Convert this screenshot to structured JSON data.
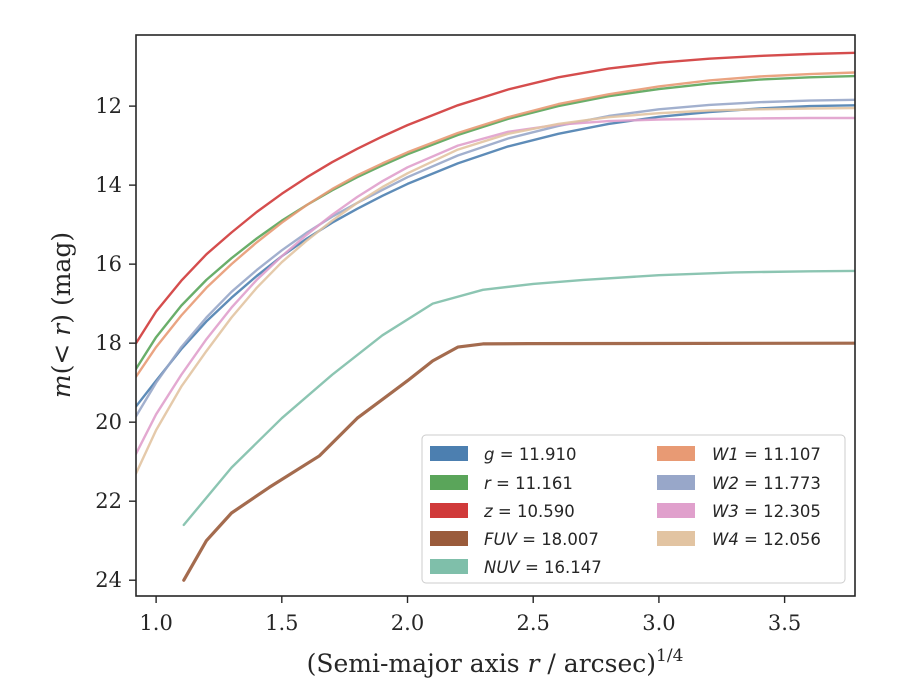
{
  "chart_data": {
    "type": "line",
    "xlabel": "(Semi-major axis r / arcsec)^{1/4}",
    "xlabel_parts": {
      "pre": "(Semi-major axis ",
      "var": "r",
      "post": " / arcsec)",
      "sup": "1/4"
    },
    "ylabel": "m(< r) (mag)",
    "ylabel_parts": {
      "m": "m",
      "open": "(",
      "lt": "<",
      "r": "r",
      "close": ")",
      "unit": " (mag)"
    },
    "xlim": [
      0.92,
      3.78
    ],
    "ylim": [
      24.4,
      10.2
    ],
    "y_inverted": true,
    "xticks": [
      1.0,
      1.5,
      2.0,
      2.5,
      3.0,
      3.5
    ],
    "xtick_labels": [
      "1.0",
      "1.5",
      "2.0",
      "2.5",
      "3.0",
      "3.5"
    ],
    "yticks": [
      12,
      14,
      16,
      18,
      20,
      22,
      24
    ],
    "ytick_labels": [
      "12",
      "14",
      "16",
      "18",
      "20",
      "22",
      "24"
    ],
    "grid": false,
    "legend_position": "lower-right",
    "legend_columns": 2,
    "series": [
      {
        "name": "g = 11.910",
        "label_var": "g",
        "label_val": "11.910",
        "color": "#4c7fb0",
        "total": 11.91,
        "points": [
          [
            0.92,
            19.6
          ],
          [
            1.0,
            18.95
          ],
          [
            1.1,
            18.15
          ],
          [
            1.2,
            17.45
          ],
          [
            1.3,
            16.85
          ],
          [
            1.4,
            16.3
          ],
          [
            1.5,
            15.8
          ],
          [
            1.6,
            15.35
          ],
          [
            1.7,
            14.95
          ],
          [
            1.8,
            14.6
          ],
          [
            1.9,
            14.27
          ],
          [
            2.0,
            13.97
          ],
          [
            2.2,
            13.45
          ],
          [
            2.4,
            13.02
          ],
          [
            2.6,
            12.7
          ],
          [
            2.8,
            12.45
          ],
          [
            3.0,
            12.27
          ],
          [
            3.2,
            12.15
          ],
          [
            3.4,
            12.06
          ],
          [
            3.6,
            12.0
          ],
          [
            3.78,
            11.98
          ]
        ]
      },
      {
        "name": "r = 11.161",
        "label_var": "r",
        "label_val": "11.161",
        "color": "#5aa55a",
        "total": 11.161,
        "points": [
          [
            0.92,
            18.65
          ],
          [
            1.0,
            17.85
          ],
          [
            1.1,
            17.05
          ],
          [
            1.2,
            16.4
          ],
          [
            1.3,
            15.85
          ],
          [
            1.4,
            15.35
          ],
          [
            1.5,
            14.9
          ],
          [
            1.6,
            14.5
          ],
          [
            1.7,
            14.13
          ],
          [
            1.8,
            13.8
          ],
          [
            1.9,
            13.5
          ],
          [
            2.0,
            13.22
          ],
          [
            2.2,
            12.73
          ],
          [
            2.4,
            12.32
          ],
          [
            2.6,
            12.0
          ],
          [
            2.8,
            11.75
          ],
          [
            3.0,
            11.57
          ],
          [
            3.2,
            11.43
          ],
          [
            3.4,
            11.33
          ],
          [
            3.6,
            11.27
          ],
          [
            3.78,
            11.24
          ]
        ]
      },
      {
        "name": "z = 10.590",
        "label_var": "z",
        "label_val": "10.590",
        "color": "#d03a3a",
        "total": 10.59,
        "points": [
          [
            0.92,
            18.0
          ],
          [
            1.0,
            17.2
          ],
          [
            1.1,
            16.42
          ],
          [
            1.2,
            15.75
          ],
          [
            1.3,
            15.2
          ],
          [
            1.4,
            14.68
          ],
          [
            1.5,
            14.22
          ],
          [
            1.6,
            13.8
          ],
          [
            1.7,
            13.42
          ],
          [
            1.8,
            13.08
          ],
          [
            1.9,
            12.77
          ],
          [
            2.0,
            12.48
          ],
          [
            2.2,
            11.98
          ],
          [
            2.4,
            11.58
          ],
          [
            2.6,
            11.27
          ],
          [
            2.8,
            11.05
          ],
          [
            3.0,
            10.9
          ],
          [
            3.2,
            10.8
          ],
          [
            3.4,
            10.73
          ],
          [
            3.6,
            10.68
          ],
          [
            3.78,
            10.65
          ]
        ]
      },
      {
        "name": "FUV = 18.007",
        "label_var": "FUV",
        "label_val": "18.007",
        "color": "#9a5b3b",
        "total": 18.007,
        "points": [
          [
            1.11,
            24.0
          ],
          [
            1.2,
            23.0
          ],
          [
            1.3,
            22.3
          ],
          [
            1.45,
            21.65
          ],
          [
            1.65,
            20.85
          ],
          [
            1.8,
            19.9
          ],
          [
            2.0,
            18.95
          ],
          [
            2.1,
            18.45
          ],
          [
            2.2,
            18.1
          ],
          [
            2.3,
            18.02
          ],
          [
            2.48,
            18.01
          ],
          [
            3.78,
            18.0
          ]
        ]
      },
      {
        "name": "NUV = 16.147",
        "label_var": "NUV",
        "label_val": "16.147",
        "color": "#7fbfaa",
        "total": 16.147,
        "points": [
          [
            1.11,
            22.6
          ],
          [
            1.3,
            21.15
          ],
          [
            1.5,
            19.9
          ],
          [
            1.7,
            18.8
          ],
          [
            1.9,
            17.8
          ],
          [
            2.1,
            17.0
          ],
          [
            2.3,
            16.65
          ],
          [
            2.5,
            16.5
          ],
          [
            2.7,
            16.4
          ],
          [
            3.0,
            16.28
          ],
          [
            3.3,
            16.21
          ],
          [
            3.6,
            16.18
          ],
          [
            3.78,
            16.17
          ]
        ]
      },
      {
        "name": "W1 = 11.107",
        "label_var": "W1",
        "label_val": "11.107",
        "color": "#e89a74",
        "total": 11.107,
        "points": [
          [
            0.92,
            18.85
          ],
          [
            1.0,
            18.1
          ],
          [
            1.1,
            17.3
          ],
          [
            1.2,
            16.6
          ],
          [
            1.3,
            16.0
          ],
          [
            1.4,
            15.45
          ],
          [
            1.5,
            14.95
          ],
          [
            1.6,
            14.5
          ],
          [
            1.7,
            14.1
          ],
          [
            1.8,
            13.75
          ],
          [
            1.9,
            13.45
          ],
          [
            2.0,
            13.17
          ],
          [
            2.2,
            12.68
          ],
          [
            2.4,
            12.28
          ],
          [
            2.6,
            11.95
          ],
          [
            2.8,
            11.7
          ],
          [
            3.0,
            11.5
          ],
          [
            3.2,
            11.35
          ],
          [
            3.4,
            11.25
          ],
          [
            3.6,
            11.19
          ],
          [
            3.78,
            11.15
          ]
        ]
      },
      {
        "name": "W2 = 11.773",
        "label_var": "W2",
        "label_val": "11.773",
        "color": "#98a7c9",
        "total": 11.773,
        "points": [
          [
            0.92,
            19.85
          ],
          [
            1.0,
            19.0
          ],
          [
            1.1,
            18.1
          ],
          [
            1.2,
            17.35
          ],
          [
            1.3,
            16.7
          ],
          [
            1.4,
            16.15
          ],
          [
            1.5,
            15.65
          ],
          [
            1.6,
            15.2
          ],
          [
            1.7,
            14.8
          ],
          [
            1.8,
            14.45
          ],
          [
            1.9,
            14.12
          ],
          [
            2.0,
            13.8
          ],
          [
            2.2,
            13.25
          ],
          [
            2.4,
            12.82
          ],
          [
            2.6,
            12.5
          ],
          [
            2.8,
            12.25
          ],
          [
            3.0,
            12.08
          ],
          [
            3.2,
            11.97
          ],
          [
            3.4,
            11.9
          ],
          [
            3.6,
            11.86
          ],
          [
            3.78,
            11.84
          ]
        ]
      },
      {
        "name": "W3 = 12.305",
        "label_var": "W3",
        "label_val": "12.305",
        "color": "#e0a0cc",
        "total": 12.305,
        "points": [
          [
            0.92,
            20.8
          ],
          [
            1.0,
            19.8
          ],
          [
            1.1,
            18.8
          ],
          [
            1.2,
            17.9
          ],
          [
            1.3,
            17.1
          ],
          [
            1.4,
            16.4
          ],
          [
            1.5,
            15.8
          ],
          [
            1.6,
            15.25
          ],
          [
            1.7,
            14.75
          ],
          [
            1.8,
            14.3
          ],
          [
            1.9,
            13.9
          ],
          [
            2.0,
            13.55
          ],
          [
            2.2,
            13.0
          ],
          [
            2.4,
            12.65
          ],
          [
            2.6,
            12.47
          ],
          [
            2.8,
            12.38
          ],
          [
            3.0,
            12.34
          ],
          [
            3.2,
            12.32
          ],
          [
            3.4,
            12.31
          ],
          [
            3.6,
            12.3
          ],
          [
            3.78,
            12.3
          ]
        ]
      },
      {
        "name": "W4 = 12.056",
        "label_var": "W4",
        "label_val": "12.056",
        "color": "#e2c4a2",
        "total": 12.056,
        "points": [
          [
            0.92,
            21.3
          ],
          [
            1.0,
            20.2
          ],
          [
            1.1,
            19.1
          ],
          [
            1.2,
            18.2
          ],
          [
            1.3,
            17.35
          ],
          [
            1.4,
            16.6
          ],
          [
            1.5,
            15.95
          ],
          [
            1.6,
            15.4
          ],
          [
            1.7,
            14.9
          ],
          [
            1.8,
            14.45
          ],
          [
            1.9,
            14.05
          ],
          [
            2.0,
            13.7
          ],
          [
            2.2,
            13.1
          ],
          [
            2.4,
            12.7
          ],
          [
            2.6,
            12.45
          ],
          [
            2.8,
            12.28
          ],
          [
            3.0,
            12.18
          ],
          [
            3.2,
            12.11
          ],
          [
            3.4,
            12.08
          ],
          [
            3.6,
            12.06
          ],
          [
            3.78,
            12.05
          ]
        ]
      }
    ]
  }
}
